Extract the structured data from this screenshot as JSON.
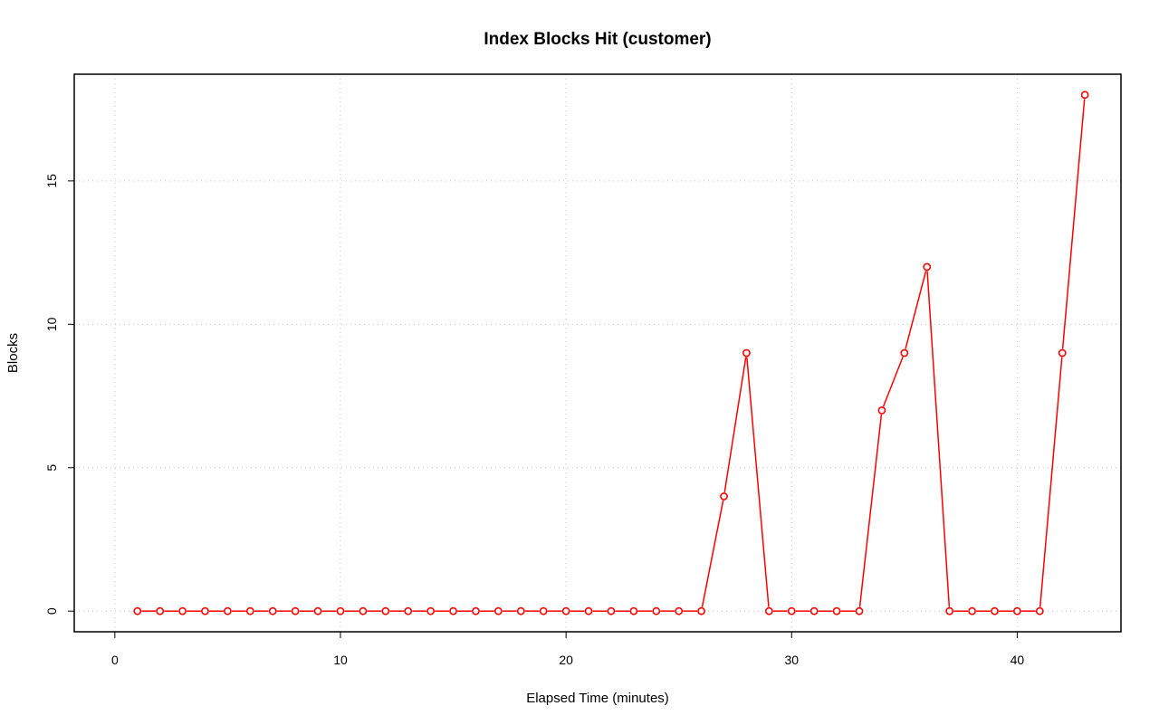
{
  "chart_data": {
    "type": "line",
    "title": "Index Blocks Hit (customer)",
    "xlabel": "Elapsed Time (minutes)",
    "ylabel": "Blocks",
    "xlim": [
      -1.8,
      44.6
    ],
    "ylim": [
      -0.72,
      18.72
    ],
    "x_ticks": [
      0,
      10,
      20,
      30,
      40
    ],
    "y_ticks": [
      0,
      5,
      10,
      15
    ],
    "grid": true,
    "series": [
      {
        "color": "#ff0000",
        "marker": "open-circle",
        "x": [
          1,
          2,
          3,
          4,
          5,
          6,
          7,
          8,
          9,
          10,
          11,
          12,
          13,
          14,
          15,
          16,
          17,
          18,
          19,
          20,
          21,
          22,
          23,
          24,
          25,
          26,
          27,
          28,
          29,
          30,
          31,
          32,
          33,
          34,
          35,
          36,
          37,
          38,
          39,
          40,
          41,
          42,
          43
        ],
        "y": [
          0,
          0,
          0,
          0,
          0,
          0,
          0,
          0,
          0,
          0,
          0,
          0,
          0,
          0,
          0,
          0,
          0,
          0,
          0,
          0,
          0,
          0,
          0,
          0,
          0,
          0,
          4,
          9,
          0,
          0,
          0,
          0,
          0,
          7,
          9,
          12,
          0,
          0,
          0,
          0,
          0,
          9,
          18
        ]
      }
    ]
  }
}
